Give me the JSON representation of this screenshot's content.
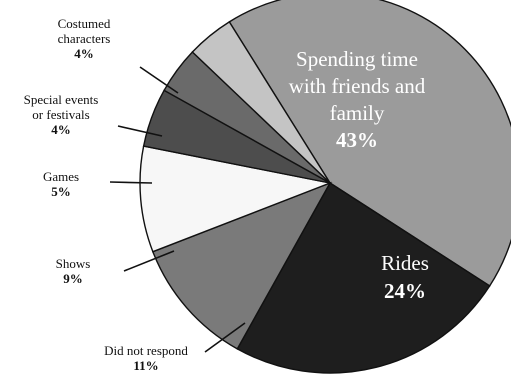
{
  "chart_data": {
    "type": "pie",
    "start_angle_deg": -122,
    "direction": "clockwise",
    "slices": [
      {
        "label": "Spending time with friends and family",
        "label_lines": [
          "Spending time",
          "with friends and",
          "family"
        ],
        "value": 43,
        "value_label": "43%",
        "color": "#9b9b9b"
      },
      {
        "label": "Rides",
        "label_lines": [
          "Rides"
        ],
        "value": 24,
        "value_label": "24%",
        "color": "#1e1e1e"
      },
      {
        "label": "Did not respond",
        "label_lines": [
          "Did not respond"
        ],
        "value": 11,
        "value_label": "11%",
        "color": "#7a7a7a"
      },
      {
        "label": "Shows",
        "label_lines": [
          "Shows"
        ],
        "value": 9,
        "value_label": "9%",
        "color": "#f7f7f7"
      },
      {
        "label": "Games",
        "label_lines": [
          "Games"
        ],
        "value": 5,
        "value_label": "5%",
        "color": "#4d4d4d"
      },
      {
        "label": "Special events or festivals",
        "label_lines": [
          "Special events",
          "or festivals"
        ],
        "value": 4,
        "value_label": "4%",
        "color": "#6a6a6a"
      },
      {
        "label": "Costumed characters",
        "label_lines": [
          "Costumed",
          "characters"
        ],
        "value": 4,
        "value_label": "4%",
        "color": "#c4c4c4"
      }
    ],
    "title": "",
    "legend": "none"
  },
  "colors": {
    "outline": "#111111",
    "background": "#ffffff"
  }
}
